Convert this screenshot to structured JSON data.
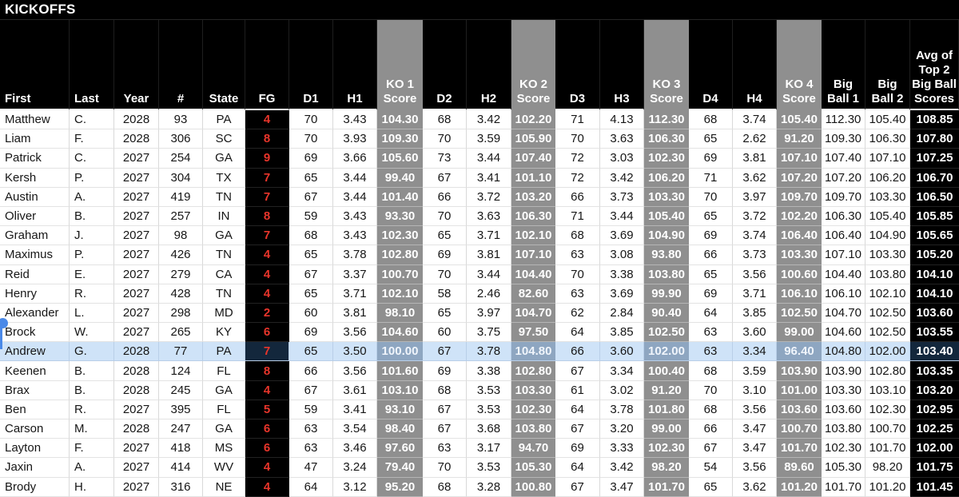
{
  "title": "KICKOFFS",
  "colors": {
    "gray_column": "#8f8f8f",
    "fg_red": "#e8352b",
    "selection_blue": "#4a89e8",
    "highlight_light": "#cfe3f8",
    "highlight_dark": "#13273c",
    "highlight_gray": "#8ea6c1"
  },
  "table": {
    "columns": [
      {
        "key": "first",
        "label": "First",
        "type": "text"
      },
      {
        "key": "last",
        "label": "Last",
        "type": "text"
      },
      {
        "key": "year",
        "label": "Year",
        "type": "num"
      },
      {
        "key": "num",
        "label": "#",
        "type": "num"
      },
      {
        "key": "state",
        "label": "State",
        "type": "num"
      },
      {
        "key": "fg",
        "label": "FG",
        "type": "fg"
      },
      {
        "key": "d1",
        "label": "D1",
        "type": "num"
      },
      {
        "key": "h1",
        "label": "H1",
        "type": "num"
      },
      {
        "key": "ko1",
        "label": "KO 1\nScore",
        "type": "score"
      },
      {
        "key": "d2",
        "label": "D2",
        "type": "num"
      },
      {
        "key": "h2",
        "label": "H2",
        "type": "num"
      },
      {
        "key": "ko2",
        "label": "KO 2\nScore",
        "type": "score"
      },
      {
        "key": "d3",
        "label": "D3",
        "type": "num"
      },
      {
        "key": "h3",
        "label": "H3",
        "type": "num"
      },
      {
        "key": "ko3",
        "label": "KO 3\nScore",
        "type": "score"
      },
      {
        "key": "d4",
        "label": "D4",
        "type": "num"
      },
      {
        "key": "h4",
        "label": "H4",
        "type": "num"
      },
      {
        "key": "ko4",
        "label": "KO 4\nScore",
        "type": "score"
      },
      {
        "key": "bb1",
        "label": "Big\nBall 1",
        "type": "num"
      },
      {
        "key": "bb2",
        "label": "Big\nBall 2",
        "type": "num"
      },
      {
        "key": "avg",
        "label": "Avg of\nTop 2\nBig Ball\nScores",
        "type": "avg"
      }
    ],
    "highlighted_row": 12,
    "rows": [
      {
        "first": "Matthew",
        "last": "C.",
        "year": "2028",
        "num": "93",
        "state": "PA",
        "fg": "4",
        "d1": "70",
        "h1": "3.43",
        "ko1": "104.30",
        "d2": "68",
        "h2": "3.42",
        "ko2": "102.20",
        "d3": "71",
        "h3": "4.13",
        "ko3": "112.30",
        "d4": "68",
        "h4": "3.74",
        "ko4": "105.40",
        "bb1": "112.30",
        "bb2": "105.40",
        "avg": "108.85"
      },
      {
        "first": "Liam",
        "last": "F.",
        "year": "2028",
        "num": "306",
        "state": "SC",
        "fg": "8",
        "d1": "70",
        "h1": "3.93",
        "ko1": "109.30",
        "d2": "70",
        "h2": "3.59",
        "ko2": "105.90",
        "d3": "70",
        "h3": "3.63",
        "ko3": "106.30",
        "d4": "65",
        "h4": "2.62",
        "ko4": "91.20",
        "bb1": "109.30",
        "bb2": "106.30",
        "avg": "107.80"
      },
      {
        "first": "Patrick",
        "last": "C.",
        "year": "2027",
        "num": "254",
        "state": "GA",
        "fg": "9",
        "d1": "69",
        "h1": "3.66",
        "ko1": "105.60",
        "d2": "73",
        "h2": "3.44",
        "ko2": "107.40",
        "d3": "72",
        "h3": "3.03",
        "ko3": "102.30",
        "d4": "69",
        "h4": "3.81",
        "ko4": "107.10",
        "bb1": "107.40",
        "bb2": "107.10",
        "avg": "107.25"
      },
      {
        "first": "Kersh",
        "last": "P.",
        "year": "2027",
        "num": "304",
        "state": "TX",
        "fg": "7",
        "d1": "65",
        "h1": "3.44",
        "ko1": "99.40",
        "d2": "67",
        "h2": "3.41",
        "ko2": "101.10",
        "d3": "72",
        "h3": "3.42",
        "ko3": "106.20",
        "d4": "71",
        "h4": "3.62",
        "ko4": "107.20",
        "bb1": "107.20",
        "bb2": "106.20",
        "avg": "106.70"
      },
      {
        "first": "Austin",
        "last": "A.",
        "year": "2027",
        "num": "419",
        "state": "TN",
        "fg": "7",
        "d1": "67",
        "h1": "3.44",
        "ko1": "101.40",
        "d2": "66",
        "h2": "3.72",
        "ko2": "103.20",
        "d3": "66",
        "h3": "3.73",
        "ko3": "103.30",
        "d4": "70",
        "h4": "3.97",
        "ko4": "109.70",
        "bb1": "109.70",
        "bb2": "103.30",
        "avg": "106.50"
      },
      {
        "first": "Oliver",
        "last": "B.",
        "year": "2027",
        "num": "257",
        "state": "IN",
        "fg": "8",
        "d1": "59",
        "h1": "3.43",
        "ko1": "93.30",
        "d2": "70",
        "h2": "3.63",
        "ko2": "106.30",
        "d3": "71",
        "h3": "3.44",
        "ko3": "105.40",
        "d4": "65",
        "h4": "3.72",
        "ko4": "102.20",
        "bb1": "106.30",
        "bb2": "105.40",
        "avg": "105.85"
      },
      {
        "first": "Graham",
        "last": "J.",
        "year": "2027",
        "num": "98",
        "state": "GA",
        "fg": "7",
        "d1": "68",
        "h1": "3.43",
        "ko1": "102.30",
        "d2": "65",
        "h2": "3.71",
        "ko2": "102.10",
        "d3": "68",
        "h3": "3.69",
        "ko3": "104.90",
        "d4": "69",
        "h4": "3.74",
        "ko4": "106.40",
        "bb1": "106.40",
        "bb2": "104.90",
        "avg": "105.65"
      },
      {
        "first": "Maximus",
        "last": "P.",
        "year": "2027",
        "num": "426",
        "state": "TN",
        "fg": "4",
        "d1": "65",
        "h1": "3.78",
        "ko1": "102.80",
        "d2": "69",
        "h2": "3.81",
        "ko2": "107.10",
        "d3": "63",
        "h3": "3.08",
        "ko3": "93.80",
        "d4": "66",
        "h4": "3.73",
        "ko4": "103.30",
        "bb1": "107.10",
        "bb2": "103.30",
        "avg": "105.20"
      },
      {
        "first": "Reid",
        "last": "E.",
        "year": "2027",
        "num": "279",
        "state": "CA",
        "fg": "4",
        "d1": "67",
        "h1": "3.37",
        "ko1": "100.70",
        "d2": "70",
        "h2": "3.44",
        "ko2": "104.40",
        "d3": "70",
        "h3": "3.38",
        "ko3": "103.80",
        "d4": "65",
        "h4": "3.56",
        "ko4": "100.60",
        "bb1": "104.40",
        "bb2": "103.80",
        "avg": "104.10"
      },
      {
        "first": "Henry",
        "last": "R.",
        "year": "2027",
        "num": "428",
        "state": "TN",
        "fg": "4",
        "d1": "65",
        "h1": "3.71",
        "ko1": "102.10",
        "d2": "58",
        "h2": "2.46",
        "ko2": "82.60",
        "d3": "63",
        "h3": "3.69",
        "ko3": "99.90",
        "d4": "69",
        "h4": "3.71",
        "ko4": "106.10",
        "bb1": "106.10",
        "bb2": "102.10",
        "avg": "104.10"
      },
      {
        "first": "Alexander",
        "last": "L.",
        "year": "2027",
        "num": "298",
        "state": "MD",
        "fg": "2",
        "d1": "60",
        "h1": "3.81",
        "ko1": "98.10",
        "d2": "65",
        "h2": "3.97",
        "ko2": "104.70",
        "d3": "62",
        "h3": "2.84",
        "ko3": "90.40",
        "d4": "64",
        "h4": "3.85",
        "ko4": "102.50",
        "bb1": "104.70",
        "bb2": "102.50",
        "avg": "103.60"
      },
      {
        "first": "Brock",
        "last": "W.",
        "year": "2027",
        "num": "265",
        "state": "KY",
        "fg": "6",
        "d1": "69",
        "h1": "3.56",
        "ko1": "104.60",
        "d2": "60",
        "h2": "3.75",
        "ko2": "97.50",
        "d3": "64",
        "h3": "3.85",
        "ko3": "102.50",
        "d4": "63",
        "h4": "3.60",
        "ko4": "99.00",
        "bb1": "104.60",
        "bb2": "102.50",
        "avg": "103.55"
      },
      {
        "first": "Andrew",
        "last": "G.",
        "year": "2028",
        "num": "77",
        "state": "PA",
        "fg": "7",
        "d1": "65",
        "h1": "3.50",
        "ko1": "100.00",
        "d2": "67",
        "h2": "3.78",
        "ko2": "104.80",
        "d3": "66",
        "h3": "3.60",
        "ko3": "102.00",
        "d4": "63",
        "h4": "3.34",
        "ko4": "96.40",
        "bb1": "104.80",
        "bb2": "102.00",
        "avg": "103.40"
      },
      {
        "first": "Keenen",
        "last": "B.",
        "year": "2028",
        "num": "124",
        "state": "FL",
        "fg": "8",
        "d1": "66",
        "h1": "3.56",
        "ko1": "101.60",
        "d2": "69",
        "h2": "3.38",
        "ko2": "102.80",
        "d3": "67",
        "h3": "3.34",
        "ko3": "100.40",
        "d4": "68",
        "h4": "3.59",
        "ko4": "103.90",
        "bb1": "103.90",
        "bb2": "102.80",
        "avg": "103.35"
      },
      {
        "first": "Brax",
        "last": "B.",
        "year": "2028",
        "num": "245",
        "state": "GA",
        "fg": "4",
        "d1": "67",
        "h1": "3.61",
        "ko1": "103.10",
        "d2": "68",
        "h2": "3.53",
        "ko2": "103.30",
        "d3": "61",
        "h3": "3.02",
        "ko3": "91.20",
        "d4": "70",
        "h4": "3.10",
        "ko4": "101.00",
        "bb1": "103.30",
        "bb2": "103.10",
        "avg": "103.20"
      },
      {
        "first": "Ben",
        "last": "R.",
        "year": "2027",
        "num": "395",
        "state": "FL",
        "fg": "5",
        "d1": "59",
        "h1": "3.41",
        "ko1": "93.10",
        "d2": "67",
        "h2": "3.53",
        "ko2": "102.30",
        "d3": "64",
        "h3": "3.78",
        "ko3": "101.80",
        "d4": "68",
        "h4": "3.56",
        "ko4": "103.60",
        "bb1": "103.60",
        "bb2": "102.30",
        "avg": "102.95"
      },
      {
        "first": "Carson",
        "last": "M.",
        "year": "2028",
        "num": "247",
        "state": "GA",
        "fg": "6",
        "d1": "63",
        "h1": "3.54",
        "ko1": "98.40",
        "d2": "67",
        "h2": "3.68",
        "ko2": "103.80",
        "d3": "67",
        "h3": "3.20",
        "ko3": "99.00",
        "d4": "66",
        "h4": "3.47",
        "ko4": "100.70",
        "bb1": "103.80",
        "bb2": "100.70",
        "avg": "102.25"
      },
      {
        "first": "Layton",
        "last": "F.",
        "year": "2027",
        "num": "418",
        "state": "MS",
        "fg": "6",
        "d1": "63",
        "h1": "3.46",
        "ko1": "97.60",
        "d2": "63",
        "h2": "3.17",
        "ko2": "94.70",
        "d3": "69",
        "h3": "3.33",
        "ko3": "102.30",
        "d4": "67",
        "h4": "3.47",
        "ko4": "101.70",
        "bb1": "102.30",
        "bb2": "101.70",
        "avg": "102.00"
      },
      {
        "first": "Jaxin",
        "last": "A.",
        "year": "2027",
        "num": "414",
        "state": "WV",
        "fg": "4",
        "d1": "47",
        "h1": "3.24",
        "ko1": "79.40",
        "d2": "70",
        "h2": "3.53",
        "ko2": "105.30",
        "d3": "64",
        "h3": "3.42",
        "ko3": "98.20",
        "d4": "54",
        "h4": "3.56",
        "ko4": "89.60",
        "bb1": "105.30",
        "bb2": "98.20",
        "avg": "101.75"
      },
      {
        "first": "Brody",
        "last": "H.",
        "year": "2027",
        "num": "316",
        "state": "NE",
        "fg": "4",
        "d1": "64",
        "h1": "3.12",
        "ko1": "95.20",
        "d2": "68",
        "h2": "3.28",
        "ko2": "100.80",
        "d3": "67",
        "h3": "3.47",
        "ko3": "101.70",
        "d4": "65",
        "h4": "3.62",
        "ko4": "101.20",
        "bb1": "101.70",
        "bb2": "101.20",
        "avg": "101.45"
      }
    ]
  }
}
